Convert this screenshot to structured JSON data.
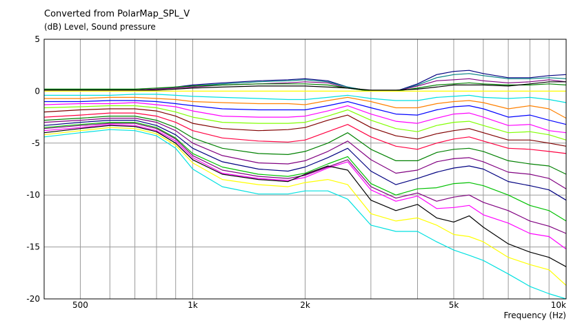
{
  "chart_data": {
    "type": "line",
    "title": "Converted from PolarMap_SPL_V",
    "subtitle": "(dB)  Level, Sound pressure",
    "xlabel": "Frequency  (Hz)",
    "ylabel": "",
    "x_scale": "log",
    "xlim": [
      400,
      10000
    ],
    "ylim": [
      -20,
      5
    ],
    "grid": true,
    "x_tick_labels": [
      {
        "value": 500,
        "label": "500"
      },
      {
        "value": 1000,
        "label": "1k"
      },
      {
        "value": 2000,
        "label": "2k"
      },
      {
        "value": 5000,
        "label": "5k"
      },
      {
        "value": 10000,
        "label": "10k"
      }
    ],
    "y_ticks": [
      {
        "value": 5,
        "label": "5"
      },
      {
        "value": 0,
        "label": "0"
      },
      {
        "value": -5,
        "label": "-5"
      },
      {
        "value": -10,
        "label": "-10"
      },
      {
        "value": -15,
        "label": "-15"
      },
      {
        "value": -20,
        "label": "-20"
      }
    ],
    "x": [
      400,
      500,
      600,
      700,
      800,
      900,
      1000,
      1200,
      1500,
      1800,
      2000,
      2300,
      2600,
      3000,
      3500,
      4000,
      4500,
      5000,
      5500,
      6000,
      7000,
      8000,
      9000,
      10000
    ],
    "series": [
      {
        "color": "#000080",
        "values": [
          0.1,
          0.1,
          0.1,
          0.1,
          0.2,
          0.4,
          0.6,
          0.8,
          1.0,
          1.1,
          1.2,
          1.0,
          0.4,
          0.0,
          0.0,
          0.7,
          1.6,
          1.9,
          2.0,
          1.7,
          1.3,
          1.3,
          1.5,
          1.6
        ]
      },
      {
        "color": "#008080",
        "values": [
          0.1,
          0.1,
          0.1,
          0.1,
          0.2,
          0.4,
          0.5,
          0.7,
          0.9,
          1.0,
          1.1,
          0.9,
          0.4,
          0.0,
          0.0,
          0.6,
          1.3,
          1.6,
          1.7,
          1.5,
          1.2,
          1.2,
          1.3,
          1.2
        ]
      },
      {
        "color": "#800080",
        "values": [
          0.1,
          0.1,
          0.1,
          0.1,
          0.2,
          0.3,
          0.4,
          0.6,
          0.7,
          0.8,
          0.9,
          0.8,
          0.3,
          0.0,
          0.0,
          0.5,
          1.0,
          1.1,
          1.2,
          1.0,
          0.8,
          0.9,
          1.1,
          0.9
        ]
      },
      {
        "color": "#008000",
        "values": [
          0.2,
          0.2,
          0.2,
          0.2,
          0.3,
          0.4,
          0.5,
          0.6,
          0.7,
          0.7,
          0.7,
          0.6,
          0.3,
          0.0,
          0.0,
          0.3,
          0.6,
          0.7,
          0.8,
          0.7,
          0.6,
          0.6,
          0.7,
          0.6
        ]
      },
      {
        "color": "#000000",
        "values": [
          0.1,
          0.1,
          0.1,
          0.1,
          0.1,
          0.2,
          0.3,
          0.4,
          0.5,
          0.5,
          0.5,
          0.4,
          0.3,
          0.1,
          0.1,
          0.2,
          0.4,
          0.6,
          0.6,
          0.6,
          0.5,
          0.7,
          0.9,
          0.9
        ]
      },
      {
        "color": "#ffff00",
        "values": [
          0.0,
          0.0,
          0.0,
          0.0,
          0.0,
          0.0,
          0.0,
          0.0,
          0.0,
          0.0,
          0.0,
          0.0,
          0.0,
          0.0,
          0.0,
          0.0,
          0.0,
          0.0,
          0.0,
          0.0,
          0.0,
          0.0,
          0.0,
          0.0
        ]
      },
      {
        "color": "#00e0e0",
        "values": [
          -0.4,
          -0.4,
          -0.4,
          -0.3,
          -0.3,
          -0.4,
          -0.5,
          -0.6,
          -0.7,
          -0.8,
          -0.8,
          -0.6,
          -0.4,
          -0.7,
          -0.9,
          -0.9,
          -0.6,
          -0.5,
          -0.4,
          -0.6,
          -0.7,
          -0.6,
          -0.8,
          -1.1
        ]
      },
      {
        "color": "#ff8000",
        "values": [
          -0.7,
          -0.7,
          -0.6,
          -0.6,
          -0.7,
          -0.8,
          -1.0,
          -1.1,
          -1.2,
          -1.2,
          -1.3,
          -0.9,
          -0.6,
          -1.0,
          -1.6,
          -1.6,
          -1.2,
          -1.0,
          -0.9,
          -1.1,
          -1.7,
          -1.4,
          -1.7,
          -2.6
        ]
      },
      {
        "color": "#0000ff",
        "values": [
          -1.0,
          -1.0,
          -0.9,
          -0.9,
          -1.0,
          -1.2,
          -1.4,
          -1.7,
          -1.8,
          -1.8,
          -1.8,
          -1.4,
          -1.0,
          -1.6,
          -2.2,
          -2.3,
          -1.8,
          -1.5,
          -1.4,
          -1.7,
          -2.5,
          -2.3,
          -2.8,
          -3.2
        ]
      },
      {
        "color": "#ff00ff",
        "values": [
          -1.3,
          -1.2,
          -1.2,
          -1.1,
          -1.3,
          -1.5,
          -1.9,
          -2.4,
          -2.5,
          -2.5,
          -2.4,
          -1.9,
          -1.4,
          -2.2,
          -2.9,
          -3.1,
          -2.6,
          -2.2,
          -2.1,
          -2.5,
          -3.3,
          -3.2,
          -3.8,
          -4.0
        ]
      },
      {
        "color": "#80ff00",
        "values": [
          -1.6,
          -1.5,
          -1.4,
          -1.4,
          -1.6,
          -2.0,
          -2.5,
          -3.0,
          -3.1,
          -3.1,
          -3.0,
          -2.4,
          -1.8,
          -2.8,
          -3.6,
          -3.9,
          -3.3,
          -3.0,
          -2.9,
          -3.3,
          -4.0,
          -3.9,
          -4.2,
          -4.7
        ]
      },
      {
        "color": "#800000",
        "values": [
          -2.0,
          -1.8,
          -1.7,
          -1.7,
          -1.9,
          -2.4,
          -3.1,
          -3.6,
          -3.8,
          -3.7,
          -3.5,
          -2.8,
          -2.3,
          -3.5,
          -4.3,
          -4.6,
          -4.1,
          -3.8,
          -3.6,
          -4.0,
          -4.7,
          -4.7,
          -5.0,
          -5.3
        ]
      },
      {
        "color": "#ff0040",
        "values": [
          -2.5,
          -2.3,
          -2.1,
          -2.1,
          -2.4,
          -3.0,
          -3.8,
          -4.5,
          -4.8,
          -4.9,
          -4.7,
          -3.9,
          -3.2,
          -4.4,
          -5.3,
          -5.6,
          -5.0,
          -4.6,
          -4.4,
          -4.8,
          -5.5,
          -5.6,
          -5.8,
          -6.0
        ]
      },
      {
        "color": "#008000",
        "values": [
          -2.8,
          -2.6,
          -2.4,
          -2.4,
          -2.8,
          -3.5,
          -4.5,
          -5.5,
          -6.0,
          -6.1,
          -5.8,
          -5.0,
          -4.0,
          -5.6,
          -6.7,
          -6.7,
          -5.9,
          -5.6,
          -5.5,
          -5.8,
          -6.7,
          -7.0,
          -7.2,
          -8.0
        ]
      },
      {
        "color": "#800080",
        "values": [
          -3.0,
          -2.8,
          -2.6,
          -2.6,
          -3.0,
          -3.8,
          -5.0,
          -6.2,
          -6.9,
          -7.0,
          -6.7,
          -5.8,
          -4.8,
          -6.6,
          -7.9,
          -7.6,
          -6.8,
          -6.5,
          -6.4,
          -6.8,
          -7.8,
          -8.0,
          -8.4,
          -9.4
        ]
      },
      {
        "color": "#000080",
        "values": [
          -3.3,
          -3.0,
          -2.8,
          -2.8,
          -3.3,
          -4.2,
          -5.5,
          -6.8,
          -7.5,
          -7.7,
          -7.3,
          -6.4,
          -5.5,
          -7.7,
          -9.0,
          -8.4,
          -7.8,
          -7.4,
          -7.2,
          -7.5,
          -8.7,
          -9.1,
          -9.5,
          -10.5
        ]
      },
      {
        "color": "#00c000",
        "values": [
          -3.5,
          -3.2,
          -3.0,
          -3.0,
          -3.5,
          -4.5,
          -6.0,
          -7.3,
          -8.0,
          -8.2,
          -7.9,
          -7.0,
          -6.3,
          -8.9,
          -10.0,
          -9.4,
          -9.3,
          -8.9,
          -8.8,
          -9.1,
          -10.0,
          -11.0,
          -11.5,
          -12.5
        ]
      },
      {
        "color": "#800080",
        "values": [
          -3.6,
          -3.3,
          -3.1,
          -3.1,
          -3.6,
          -4.6,
          -6.2,
          -7.6,
          -8.2,
          -8.4,
          -8.1,
          -7.3,
          -6.6,
          -9.2,
          -10.3,
          -9.8,
          -10.6,
          -10.2,
          -10.0,
          -10.7,
          -11.5,
          -12.5,
          -13.0,
          -13.7
        ]
      },
      {
        "color": "#ff00ff",
        "values": [
          -3.8,
          -3.5,
          -3.2,
          -3.3,
          -3.8,
          -4.8,
          -6.4,
          -7.9,
          -8.4,
          -8.6,
          -8.3,
          -7.4,
          -6.8,
          -9.5,
          -10.6,
          -10.1,
          -11.3,
          -11.2,
          -11.0,
          -11.9,
          -12.7,
          -13.7,
          -14.0,
          -15.2
        ]
      },
      {
        "color": "#000000",
        "values": [
          -4.0,
          -3.6,
          -3.3,
          -3.4,
          -3.9,
          -5.0,
          -6.6,
          -8.0,
          -8.5,
          -8.7,
          -8.0,
          -7.2,
          -7.6,
          -10.5,
          -11.5,
          -10.9,
          -12.2,
          -12.6,
          -12.0,
          -13.1,
          -14.7,
          -15.5,
          -16.0,
          -16.9
        ]
      },
      {
        "color": "#ffff00",
        "values": [
          -4.2,
          -3.8,
          -3.5,
          -3.6,
          -4.1,
          -5.2,
          -6.9,
          -8.5,
          -9.0,
          -9.2,
          -8.8,
          -8.5,
          -9.0,
          -11.8,
          -12.5,
          -12.2,
          -12.9,
          -13.8,
          -14.0,
          -14.5,
          -16.0,
          -16.7,
          -17.2,
          -18.7
        ]
      },
      {
        "color": "#00e0e0",
        "values": [
          -4.4,
          -4.0,
          -3.7,
          -3.8,
          -4.3,
          -5.5,
          -7.5,
          -9.2,
          -9.9,
          -9.9,
          -9.6,
          -9.6,
          -10.4,
          -12.9,
          -13.5,
          -13.5,
          -14.5,
          -15.3,
          -15.8,
          -16.3,
          -17.6,
          -18.8,
          -19.5,
          -20.0
        ]
      }
    ]
  }
}
